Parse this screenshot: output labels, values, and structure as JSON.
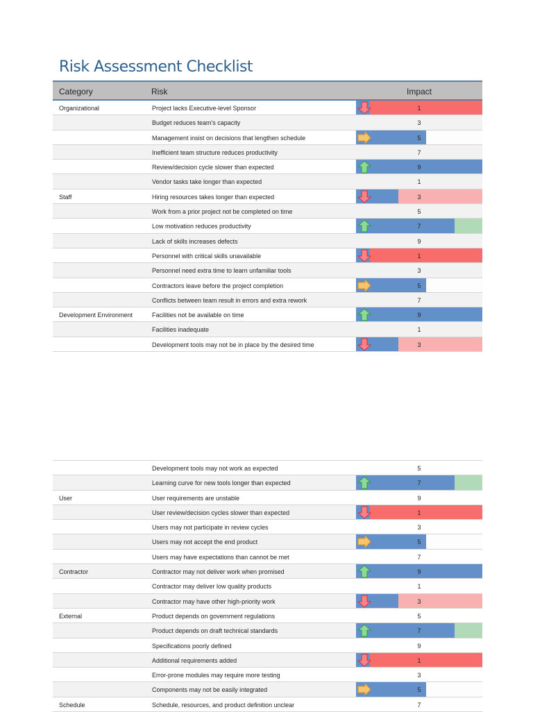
{
  "title": "Risk Assessment Checklist",
  "headers": {
    "category": "Category",
    "risk": "Risk",
    "impact": "Impact"
  },
  "colors": {
    "bar": "#6390c8",
    "impact_1": "#f86c6b",
    "impact_3": "#f9b0b0",
    "impact_5": "#fdfdfd",
    "impact_7": "#b0dab8",
    "up": "#8fd89a",
    "right": "#f8c56a",
    "down": "#f7838a"
  },
  "sections": [
    {
      "rows": [
        {
          "category": "Organizational",
          "risk": "Project lacks Executive-level Sponsor",
          "impact": 1,
          "indicator": "arrow-down-icon"
        },
        {
          "category": "",
          "risk": "Budget reduces team's capacity",
          "impact": 3
        },
        {
          "category": "",
          "risk": "Management insist on decisions that lengthen schedule",
          "impact": 5,
          "indicator": "arrow-right-icon"
        },
        {
          "category": "",
          "risk": "Inefficient team structure reduces productivity",
          "impact": 7
        },
        {
          "category": "",
          "risk": "Review/decision cycle slower than expected",
          "impact": 9,
          "indicator": "arrow-up-icon"
        },
        {
          "category": "",
          "risk": "Vendor tasks take longer than expected",
          "impact": 1
        },
        {
          "category": "Staff",
          "risk": "Hiring resources takes longer than expected",
          "impact": 3,
          "indicator": "arrow-down-icon"
        },
        {
          "category": "",
          "risk": "Work from a prior project not be completed on time",
          "impact": 5
        },
        {
          "category": "",
          "risk": "Low motivation reduces productivity",
          "impact": 7,
          "indicator": "arrow-up-icon"
        },
        {
          "category": "",
          "risk": "Lack of skills increases defects",
          "impact": 9
        },
        {
          "category": "",
          "risk": "Personnel with critical skills unavailable",
          "impact": 1,
          "indicator": "arrow-down-icon"
        },
        {
          "category": "",
          "risk": "Personnel need extra time to learn unfamiliar tools",
          "impact": 3
        },
        {
          "category": "",
          "risk": "Contractors leave before the project completion",
          "impact": 5,
          "indicator": "arrow-right-icon"
        },
        {
          "category": "",
          "risk": "Conflicts between team  result in errors and extra rework",
          "impact": 7
        },
        {
          "category": "Development Environment",
          "risk": "Facilities  not be available on time",
          "impact": 9,
          "indicator": "arrow-up-icon"
        },
        {
          "category": "",
          "risk": "Facilities  inadequate",
          "impact": 1
        },
        {
          "category": "",
          "risk": "Development tools may not be in place by the desired time",
          "impact": 3,
          "indicator": "arrow-down-icon"
        }
      ]
    },
    {
      "rows": [
        {
          "category": "",
          "risk": "Development tools may not work as expected",
          "impact": 5
        },
        {
          "category": "",
          "risk": "Learning curve for new tools  longer than expected",
          "impact": 7,
          "indicator": "arrow-up-icon"
        },
        {
          "category": "User",
          "risk": "User requirements are unstable",
          "impact": 9
        },
        {
          "category": "",
          "risk": "User review/decision cycles slower than expected",
          "impact": 1,
          "indicator": "arrow-down-icon"
        },
        {
          "category": "",
          "risk": "Users may not participate in review cycles",
          "impact": 3
        },
        {
          "category": "",
          "risk": "Users may not accept the end product",
          "impact": 5,
          "indicator": "arrow-right-icon"
        },
        {
          "category": "",
          "risk": "Users may have expectations than cannot be met",
          "impact": 7
        },
        {
          "category": "Contractor",
          "risk": "Contractor may not deliver work when promised",
          "impact": 9,
          "indicator": "arrow-up-icon"
        },
        {
          "category": "",
          "risk": "Contractor may deliver low quality products",
          "impact": 1
        },
        {
          "category": "",
          "risk": "Contractor may have other high-priority work",
          "impact": 3,
          "indicator": "arrow-down-icon"
        },
        {
          "category": "External",
          "risk": "Product depends on government regulations",
          "impact": 5
        },
        {
          "category": "",
          "risk": "Product depends on draft technical standards",
          "impact": 7,
          "indicator": "arrow-up-icon"
        },
        {
          "category": "",
          "risk": "Specifications  poorly defined",
          "impact": 9
        },
        {
          "category": "",
          "risk": "Additional requirements  added",
          "impact": 1,
          "indicator": "arrow-down-icon"
        },
        {
          "category": "",
          "risk": "Error-prone modules may require more testing",
          "impact": 3
        },
        {
          "category": "",
          "risk": "Components may not be easily integrated",
          "impact": 5,
          "indicator": "arrow-right-icon"
        },
        {
          "category": "Schedule",
          "risk": "Schedule, resources, and product definition unclear",
          "impact": 7
        }
      ]
    }
  ]
}
